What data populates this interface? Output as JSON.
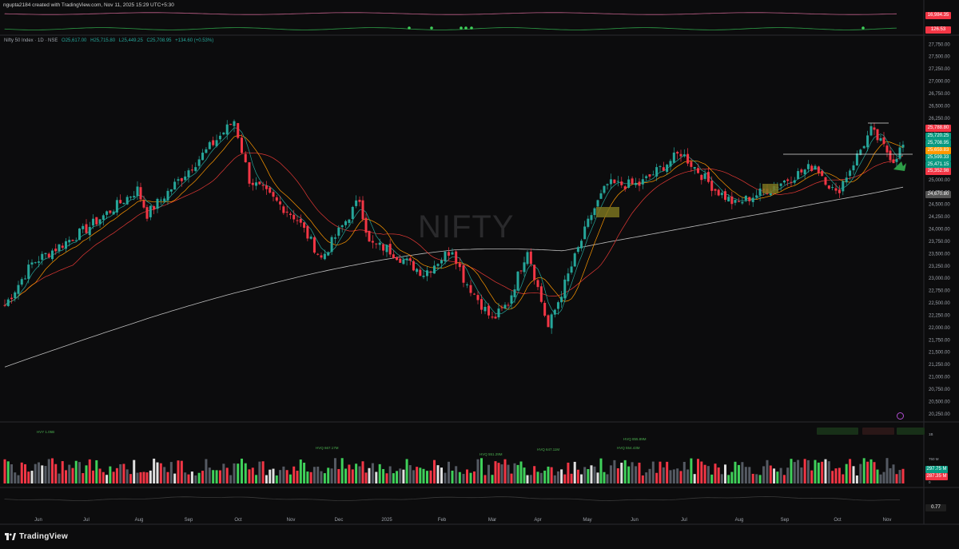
{
  "header": {
    "creator_line": "ngupta2184 created with TradingView.com, Nov 11, 2025 15:29 UTC+5:30"
  },
  "symbol": {
    "title": "Nifty 50 Index · 1D · NSE",
    "open": "O25,617.00",
    "high": "H25,715.80",
    "low": "L25,449.25",
    "close": "C25,708.95",
    "change": "+134.60 (+0.53%)",
    "watermark": "NIFTY"
  },
  "upper_indicator": {
    "tag1": "16,984.35",
    "tag2": "126.53"
  },
  "price_tags": [
    {
      "label": "25,788.80",
      "color": "#f23645"
    },
    {
      "label": "25,720.25",
      "color": "#089981"
    },
    {
      "label": "25,708.95",
      "color": "#089981"
    },
    {
      "label": "25,659.83",
      "color": "#ff9800"
    },
    {
      "label": "25,599.33",
      "color": "#089981"
    },
    {
      "label": "25,471.15",
      "color": "#089981"
    },
    {
      "label": "25,352.98",
      "color": "#f23645"
    },
    {
      "label": "24,670.80",
      "color": "#555555"
    }
  ],
  "volume": {
    "tick_1b": "1B",
    "tick_750m": "750 M",
    "tick_0": "0",
    "tag_green": "297.75 M",
    "tag_red": "287.35 M",
    "annotations": [
      {
        "text": "HVY 1.05B",
        "color": "#4caf50"
      },
      {
        "text": "HVQ 667.17M",
        "color": "#4caf50"
      },
      {
        "text": "HVQ 551.29M",
        "color": "#4caf50"
      },
      {
        "text": "HVQ 647.11M",
        "color": "#4caf50"
      },
      {
        "text": "HVQ 855.89M",
        "color": "#4caf50"
      },
      {
        "text": "HVQ 554.43M",
        "color": "#4caf50"
      }
    ]
  },
  "oscillator": {
    "tag": "0.77"
  },
  "chart_data": {
    "type": "candlestick",
    "title": "Nifty 50 Index · 1D · NSE",
    "y_axis_ticks": [
      "27,750.00",
      "27,500.00",
      "27,250.00",
      "27,000.00",
      "26,750.00",
      "26,500.00",
      "26,250.00",
      "26,000.00",
      "25,750.00",
      "25,500.00",
      "25,250.00",
      "25,000.00",
      "24,750.00",
      "24,500.00",
      "24,250.00",
      "24,000.00",
      "23,750.00",
      "23,500.00",
      "23,250.00",
      "23,000.00",
      "22,750.00",
      "22,500.00",
      "22,250.00",
      "22,000.00",
      "21,750.00",
      "21,500.00",
      "21,250.00",
      "21,000.00",
      "20,750.00",
      "20,500.00",
      "20,250.00"
    ],
    "x_axis_ticks": [
      "Jun",
      "Jul",
      "Aug",
      "Sep",
      "Oct",
      "Nov",
      "Dec",
      "2025",
      "Feb",
      "Mar",
      "Apr",
      "May",
      "Jun",
      "Jul",
      "Aug",
      "Sep",
      "Oct",
      "Nov"
    ],
    "ylim": [
      20100,
      27900
    ],
    "path_keypoints": [
      [
        "Jun",
        22450
      ],
      [
        "Jun",
        23300
      ],
      [
        "Jul",
        24000
      ],
      [
        "Aug",
        24800
      ],
      [
        "Aug",
        24300
      ],
      [
        "Sep",
        25200
      ],
      [
        "Sep",
        26200
      ],
      [
        "Oct",
        25000
      ],
      [
        "Nov",
        24200
      ],
      [
        "Nov",
        23400
      ],
      [
        "Dec",
        24600
      ],
      [
        "Dec",
        23700
      ],
      [
        "2025",
        23600
      ],
      [
        "2025",
        23100
      ],
      [
        "Feb",
        23600
      ],
      [
        "Feb",
        23000
      ],
      [
        "Mar",
        22150
      ],
      [
        "Mar",
        22500
      ],
      [
        "Apr",
        23600
      ],
      [
        "Apr",
        22000
      ],
      [
        "May",
        24300
      ],
      [
        "May",
        24900
      ],
      [
        "Jun",
        24900
      ],
      [
        "Jul",
        25550
      ],
      [
        "Jul",
        24800
      ],
      [
        "Aug",
        24500
      ],
      [
        "Sep",
        24800
      ],
      [
        "Sep",
        25300
      ],
      [
        "Oct",
        24700
      ],
      [
        "Oct",
        26000
      ],
      [
        "Nov",
        25400
      ],
      [
        "Nov",
        25709
      ]
    ],
    "last_close": 25708.95
  }
}
